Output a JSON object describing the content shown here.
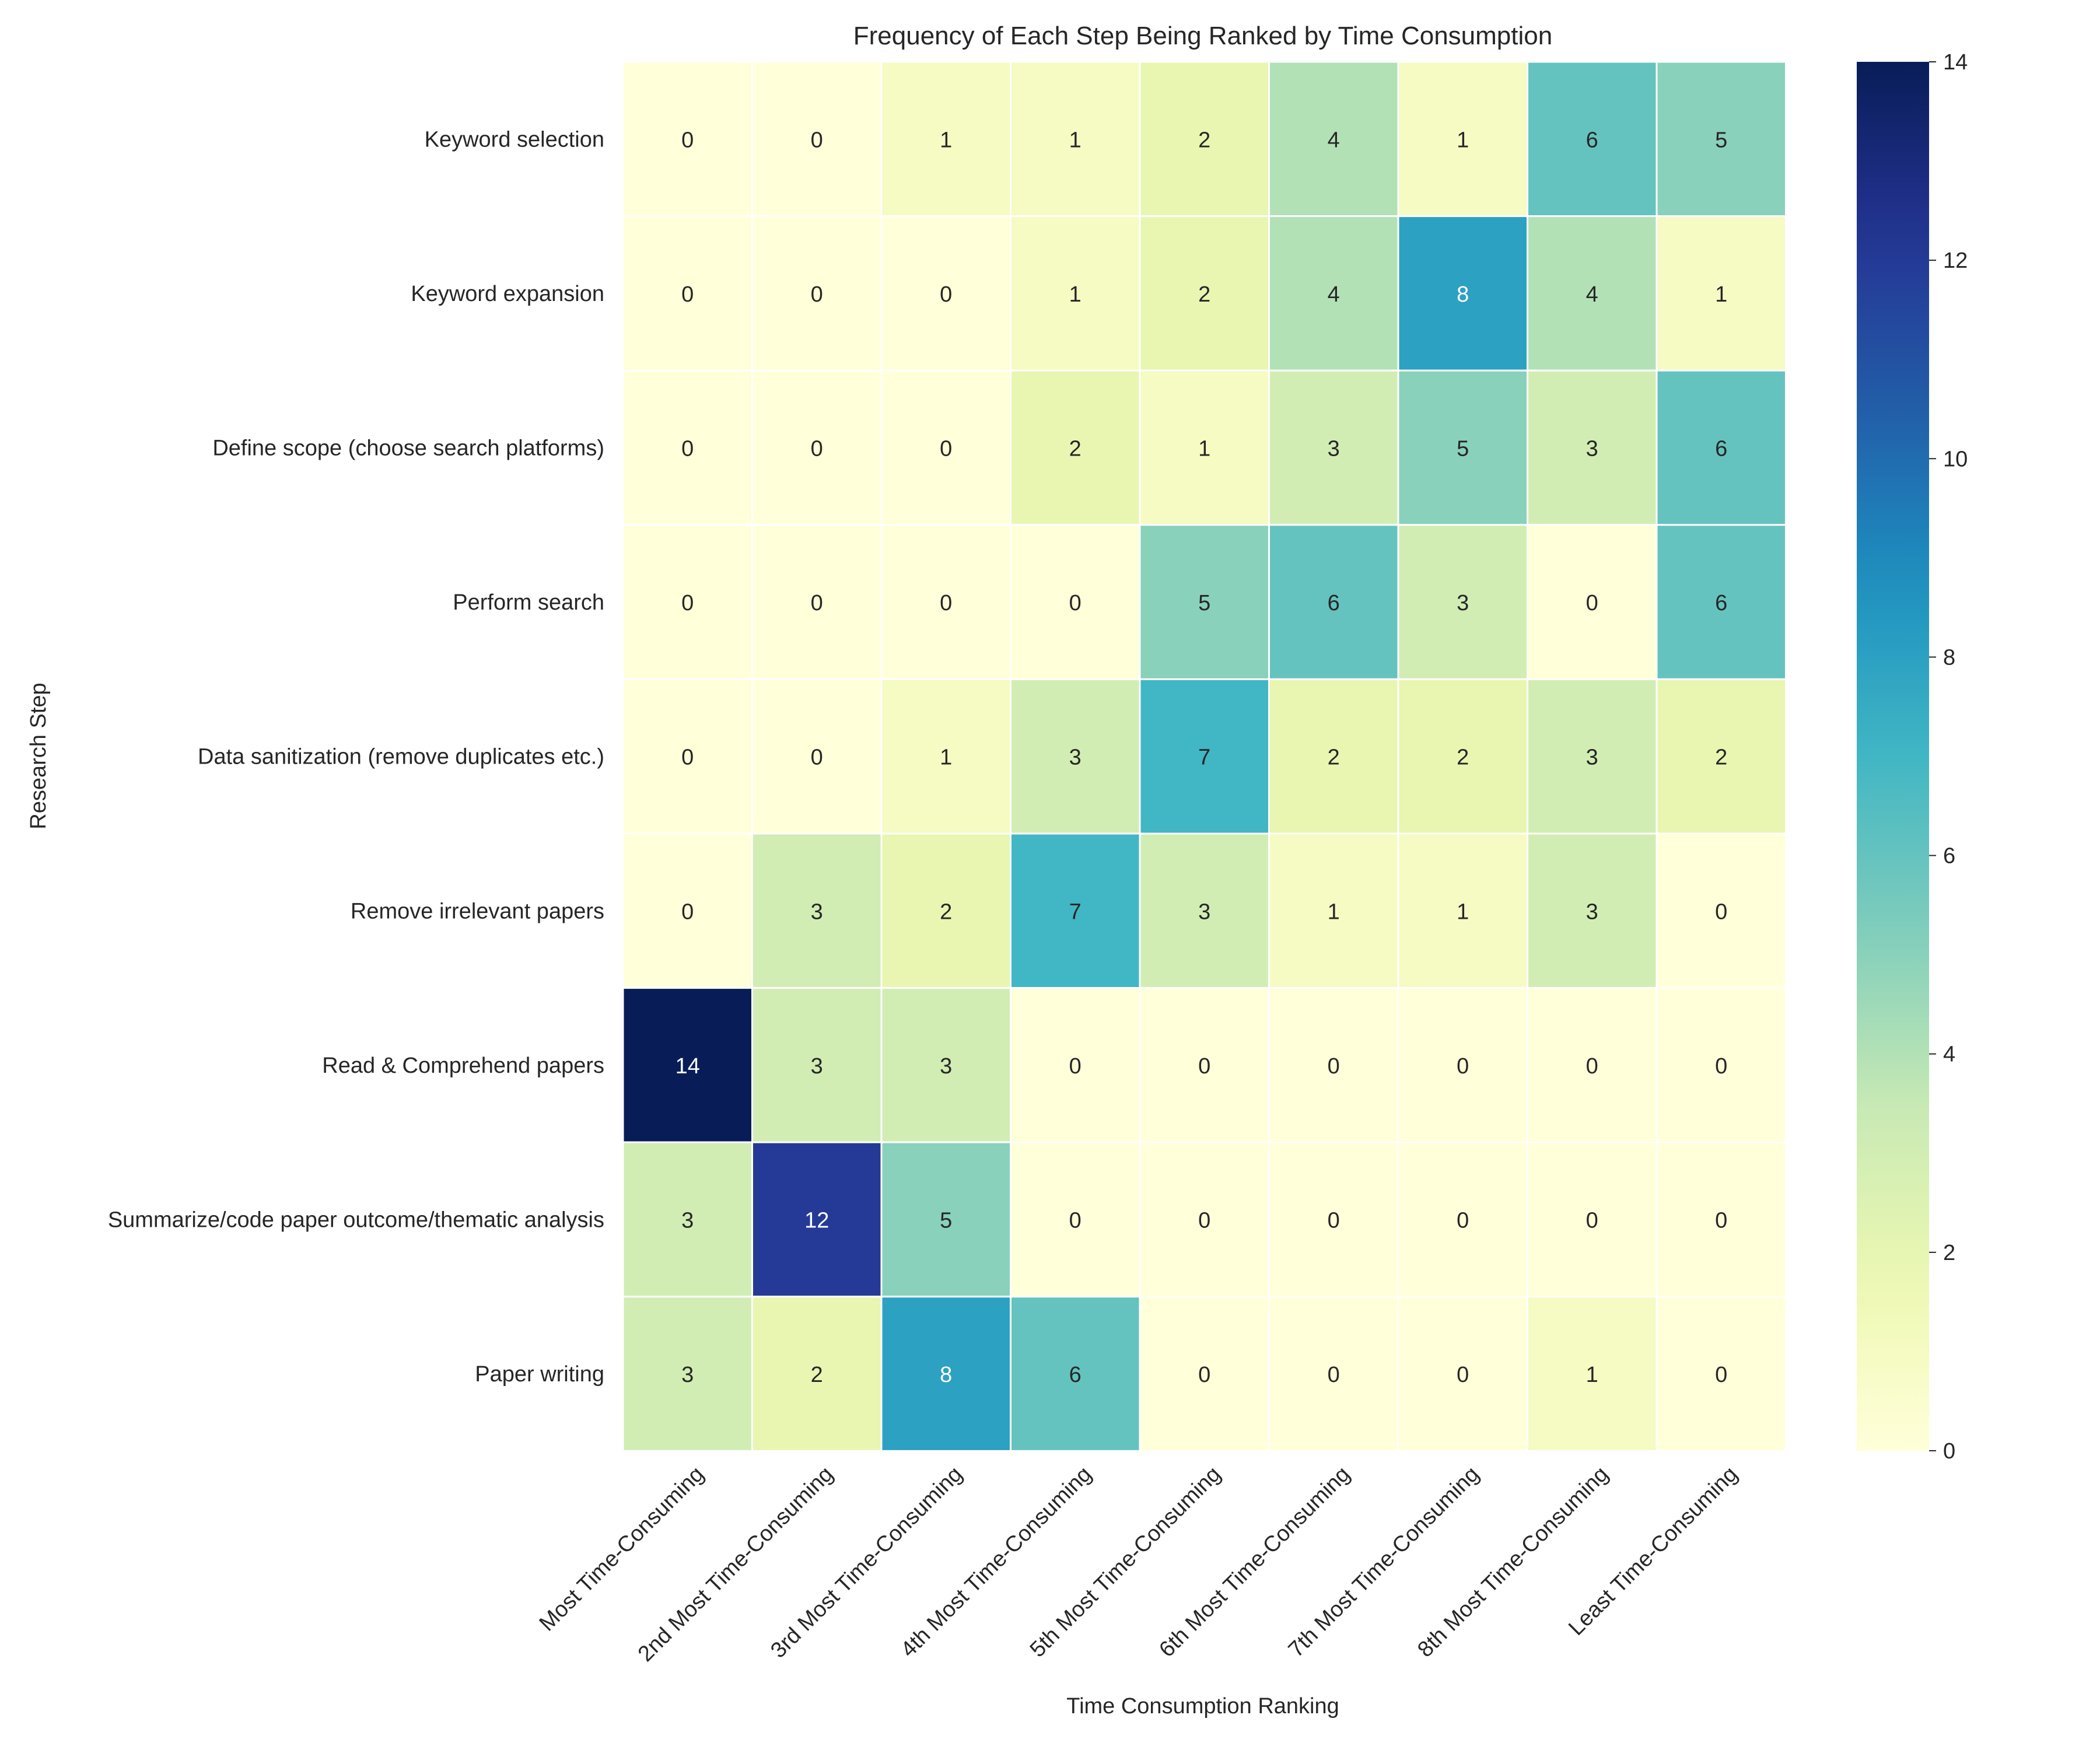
{
  "chart_data": {
    "type": "heatmap",
    "title": "Frequency of Each Step Being Ranked by Time Consumption",
    "xlabel": "Time Consumption Ranking",
    "ylabel": "Research Step",
    "columns": [
      "Most Time-Consuming",
      "2nd Most Time-Consuming",
      "3rd Most Time-Consuming",
      "4th Most Time-Consuming",
      "5th Most Time-Consuming",
      "6th Most Time-Consuming",
      "7th Most Time-Consuming",
      "8th Most Time-Consuming",
      "Least Time-Consuming"
    ],
    "rows": [
      "Keyword selection",
      "Keyword expansion",
      "Define scope (choose search platforms)",
      "Perform search",
      "Data sanitization (remove duplicates etc.)",
      "Remove irrelevant papers",
      "Read & Comprehend papers",
      "Summarize/code paper outcome/thematic analysis",
      "Paper writing"
    ],
    "values": [
      [
        0,
        0,
        1,
        1,
        2,
        4,
        1,
        6,
        5
      ],
      [
        0,
        0,
        0,
        1,
        2,
        4,
        8,
        4,
        1
      ],
      [
        0,
        0,
        0,
        2,
        1,
        3,
        5,
        3,
        6
      ],
      [
        0,
        0,
        0,
        0,
        5,
        6,
        3,
        0,
        6
      ],
      [
        0,
        0,
        1,
        3,
        7,
        2,
        2,
        3,
        2
      ],
      [
        0,
        3,
        2,
        7,
        3,
        1,
        1,
        3,
        0
      ],
      [
        14,
        3,
        3,
        0,
        0,
        0,
        0,
        0,
        0
      ],
      [
        3,
        12,
        5,
        0,
        0,
        0,
        0,
        0,
        0
      ],
      [
        3,
        2,
        8,
        6,
        0,
        0,
        0,
        1,
        0
      ]
    ],
    "colorbar": {
      "colormap": "YlGnBu",
      "range": [
        0,
        14
      ],
      "ticks": [
        0,
        2,
        4,
        6,
        8,
        10,
        12,
        14
      ]
    }
  }
}
